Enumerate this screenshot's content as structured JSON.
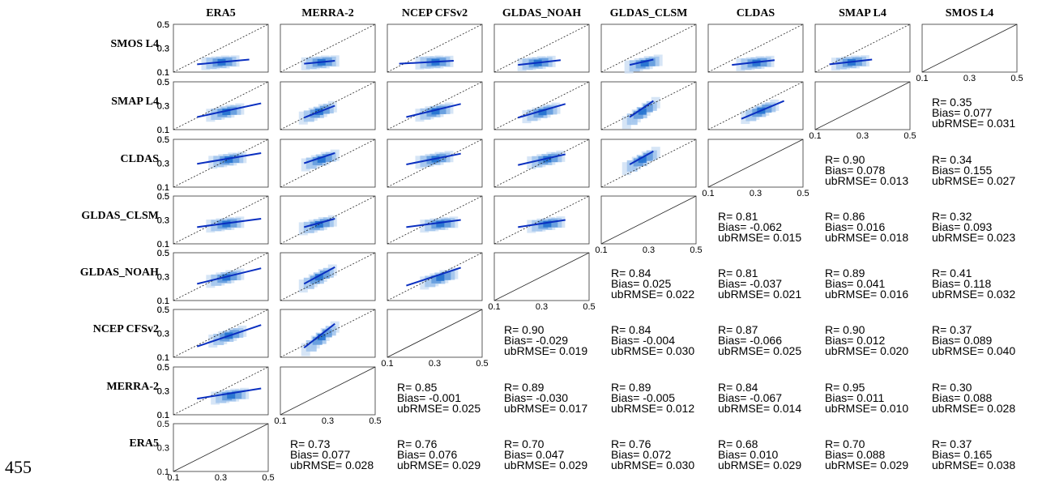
{
  "page_number": "455",
  "chart_data": {
    "type": "scatter",
    "products": [
      "ERA5",
      "MERRA-2",
      "NCEP CFSv2",
      "GLDAS_NOAH",
      "GLDAS_CLSM",
      "CLDAS",
      "SMAP L4",
      "SMOS L4"
    ],
    "row_products": [
      "SMOS L4",
      "SMAP L4",
      "CLDAS",
      "GLDAS_CLSM",
      "GLDAS_NOAH",
      "NCEP CFSv2",
      "MERRA-2",
      "ERA5"
    ],
    "axis_range": [
      0.1,
      0.5
    ],
    "tick_labels": [
      "0.1",
      "0.3",
      "0.5"
    ],
    "scatter_colors": [
      "#cfe0f5",
      "#9fc3ec",
      "#5f99dc",
      "#1f6fcf"
    ],
    "fit_line_color": "#0a2fc0",
    "one_to_one": "dashed",
    "scatter_panels": [
      {
        "row": "SMOS L4",
        "col": "ERA5",
        "cx": 0.3,
        "cy": 0.185,
        "x": [
          0.2,
          0.42
        ],
        "y": [
          0.165,
          0.205
        ]
      },
      {
        "row": "SMOS L4",
        "col": "MERRA-2",
        "cx": 0.27,
        "cy": 0.185,
        "x": [
          0.2,
          0.33
        ],
        "y": [
          0.17,
          0.195
        ]
      },
      {
        "row": "SMOS L4",
        "col": "NCEP CFSv2",
        "cx": 0.3,
        "cy": 0.185,
        "x": [
          0.15,
          0.38
        ],
        "y": [
          0.17,
          0.195
        ]
      },
      {
        "row": "SMOS L4",
        "col": "GLDAS_NOAH",
        "cx": 0.28,
        "cy": 0.18,
        "x": [
          0.2,
          0.38
        ],
        "y": [
          0.16,
          0.2
        ]
      },
      {
        "row": "SMOS L4",
        "col": "GLDAS_CLSM",
        "cx": 0.28,
        "cy": 0.18,
        "x": [
          0.22,
          0.32
        ],
        "y": [
          0.16,
          0.205
        ]
      },
      {
        "row": "SMOS L4",
        "col": "CLDAS",
        "cx": 0.3,
        "cy": 0.18,
        "x": [
          0.2,
          0.38
        ],
        "y": [
          0.16,
          0.2
        ]
      },
      {
        "row": "SMOS L4",
        "col": "SMAP L4",
        "cx": 0.25,
        "cy": 0.185,
        "x": [
          0.16,
          0.34
        ],
        "y": [
          0.165,
          0.205
        ]
      },
      {
        "row": "SMAP L4",
        "col": "ERA5",
        "cx": 0.32,
        "cy": 0.255,
        "x": [
          0.2,
          0.47
        ],
        "y": [
          0.205,
          0.32
        ]
      },
      {
        "row": "SMAP L4",
        "col": "MERRA-2",
        "cx": 0.26,
        "cy": 0.26,
        "x": [
          0.2,
          0.33
        ],
        "y": [
          0.2,
          0.3
        ]
      },
      {
        "row": "SMAP L4",
        "col": "NCEP CFSv2",
        "cx": 0.3,
        "cy": 0.26,
        "x": [
          0.18,
          0.41
        ],
        "y": [
          0.205,
          0.315
        ]
      },
      {
        "row": "SMAP L4",
        "col": "GLDAS_NOAH",
        "cx": 0.3,
        "cy": 0.255,
        "x": [
          0.2,
          0.4
        ],
        "y": [
          0.2,
          0.315
        ]
      },
      {
        "row": "SMAP L4",
        "col": "GLDAS_CLSM",
        "cx": 0.27,
        "cy": 0.27,
        "x": [
          0.22,
          0.32
        ],
        "y": [
          0.205,
          0.34
        ]
      },
      {
        "row": "SMAP L4",
        "col": "CLDAS",
        "cx": 0.32,
        "cy": 0.27,
        "x": [
          0.24,
          0.42
        ],
        "y": [
          0.19,
          0.34
        ]
      },
      {
        "row": "CLDAS",
        "col": "ERA5",
        "cx": 0.33,
        "cy": 0.335,
        "x": [
          0.2,
          0.47
        ],
        "y": [
          0.295,
          0.385
        ]
      },
      {
        "row": "CLDAS",
        "col": "MERRA-2",
        "cx": 0.27,
        "cy": 0.34,
        "x": [
          0.2,
          0.33
        ],
        "y": [
          0.3,
          0.385
        ]
      },
      {
        "row": "CLDAS",
        "col": "NCEP CFSv2",
        "cx": 0.3,
        "cy": 0.34,
        "x": [
          0.18,
          0.41
        ],
        "y": [
          0.29,
          0.38
        ]
      },
      {
        "row": "CLDAS",
        "col": "GLDAS_NOAH",
        "cx": 0.32,
        "cy": 0.34,
        "x": [
          0.2,
          0.4
        ],
        "y": [
          0.285,
          0.375
        ]
      },
      {
        "row": "CLDAS",
        "col": "GLDAS_CLSM",
        "cx": 0.27,
        "cy": 0.345,
        "x": [
          0.22,
          0.32
        ],
        "y": [
          0.29,
          0.4
        ]
      },
      {
        "row": "GLDAS_CLSM",
        "col": "ERA5",
        "cx": 0.32,
        "cy": 0.27,
        "x": [
          0.2,
          0.47
        ],
        "y": [
          0.24,
          0.31
        ]
      },
      {
        "row": "GLDAS_CLSM",
        "col": "MERRA-2",
        "cx": 0.26,
        "cy": 0.27,
        "x": [
          0.2,
          0.33
        ],
        "y": [
          0.24,
          0.31
        ]
      },
      {
        "row": "GLDAS_CLSM",
        "col": "NCEP CFSv2",
        "cx": 0.32,
        "cy": 0.27,
        "x": [
          0.18,
          0.41
        ],
        "y": [
          0.24,
          0.3
        ]
      },
      {
        "row": "GLDAS_CLSM",
        "col": "GLDAS_NOAH",
        "cx": 0.32,
        "cy": 0.27,
        "x": [
          0.2,
          0.4
        ],
        "y": [
          0.24,
          0.3
        ]
      },
      {
        "row": "GLDAS_NOAH",
        "col": "ERA5",
        "cx": 0.32,
        "cy": 0.3,
        "x": [
          0.2,
          0.47
        ],
        "y": [
          0.24,
          0.37
        ]
      },
      {
        "row": "GLDAS_NOAH",
        "col": "MERRA-2",
        "cx": 0.26,
        "cy": 0.31,
        "x": [
          0.2,
          0.33
        ],
        "y": [
          0.24,
          0.38
        ]
      },
      {
        "row": "GLDAS_NOAH",
        "col": "NCEP CFSv2",
        "cx": 0.32,
        "cy": 0.3,
        "x": [
          0.18,
          0.41
        ],
        "y": [
          0.225,
          0.375
        ]
      },
      {
        "row": "NCEP CFSv2",
        "col": "ERA5",
        "cx": 0.33,
        "cy": 0.29,
        "x": [
          0.2,
          0.47
        ],
        "y": [
          0.19,
          0.37
        ]
      },
      {
        "row": "NCEP CFSv2",
        "col": "MERRA-2",
        "cx": 0.27,
        "cy": 0.29,
        "x": [
          0.2,
          0.33
        ],
        "y": [
          0.18,
          0.38
        ]
      },
      {
        "row": "MERRA-2",
        "col": "ERA5",
        "cx": 0.34,
        "cy": 0.265,
        "x": [
          0.2,
          0.47
        ],
        "y": [
          0.235,
          0.32
        ]
      }
    ],
    "statistics": [
      {
        "row": "SMAP L4",
        "col": "SMOS L4",
        "R": "0.35",
        "Bias": "0.077",
        "ubRMSE": "0.031"
      },
      {
        "row": "CLDAS",
        "col": "SMAP L4",
        "R": "0.90",
        "Bias": "0.078",
        "ubRMSE": "0.013"
      },
      {
        "row": "CLDAS",
        "col": "SMOS L4",
        "R": "0.34",
        "Bias": "0.155",
        "ubRMSE": "0.027"
      },
      {
        "row": "GLDAS_CLSM",
        "col": "CLDAS",
        "R": "0.81",
        "Bias": "-0.062",
        "ubRMSE": "0.015"
      },
      {
        "row": "GLDAS_CLSM",
        "col": "SMAP L4",
        "R": "0.86",
        "Bias": "0.016",
        "ubRMSE": "0.018"
      },
      {
        "row": "GLDAS_CLSM",
        "col": "SMOS L4",
        "R": "0.32",
        "Bias": "0.093",
        "ubRMSE": "0.023"
      },
      {
        "row": "GLDAS_NOAH",
        "col": "GLDAS_CLSM",
        "R": "0.84",
        "Bias": "0.025",
        "ubRMSE": "0.022"
      },
      {
        "row": "GLDAS_NOAH",
        "col": "CLDAS",
        "R": "0.81",
        "Bias": "-0.037",
        "ubRMSE": "0.021"
      },
      {
        "row": "GLDAS_NOAH",
        "col": "SMAP L4",
        "R": "0.89",
        "Bias": "0.041",
        "ubRMSE": "0.016"
      },
      {
        "row": "GLDAS_NOAH",
        "col": "SMOS L4",
        "R": "0.41",
        "Bias": "0.118",
        "ubRMSE": "0.032"
      },
      {
        "row": "NCEP CFSv2",
        "col": "GLDAS_NOAH",
        "R": "0.90",
        "Bias": "-0.029",
        "ubRMSE": "0.019"
      },
      {
        "row": "NCEP CFSv2",
        "col": "GLDAS_CLSM",
        "R": "0.84",
        "Bias": "-0.004",
        "ubRMSE": "0.030"
      },
      {
        "row": "NCEP CFSv2",
        "col": "CLDAS",
        "R": "0.87",
        "Bias": "-0.066",
        "ubRMSE": "0.025"
      },
      {
        "row": "NCEP CFSv2",
        "col": "SMAP L4",
        "R": "0.90",
        "Bias": "0.012",
        "ubRMSE": "0.020"
      },
      {
        "row": "NCEP CFSv2",
        "col": "SMOS L4",
        "R": "0.37",
        "Bias": "0.089",
        "ubRMSE": "0.040"
      },
      {
        "row": "MERRA-2",
        "col": "NCEP CFSv2",
        "R": "0.85",
        "Bias": "-0.001",
        "ubRMSE": "0.025"
      },
      {
        "row": "MERRA-2",
        "col": "GLDAS_NOAH",
        "R": "0.89",
        "Bias": "-0.030",
        "ubRMSE": "0.017"
      },
      {
        "row": "MERRA-2",
        "col": "GLDAS_CLSM",
        "R": "0.89",
        "Bias": "-0.005",
        "ubRMSE": "0.012"
      },
      {
        "row": "MERRA-2",
        "col": "CLDAS",
        "R": "0.84",
        "Bias": "-0.067",
        "ubRMSE": "0.014"
      },
      {
        "row": "MERRA-2",
        "col": "SMAP L4",
        "R": "0.95",
        "Bias": "0.011",
        "ubRMSE": "0.010"
      },
      {
        "row": "MERRA-2",
        "col": "SMOS L4",
        "R": "0.30",
        "Bias": "0.088",
        "ubRMSE": "0.028"
      },
      {
        "row": "ERA5",
        "col": "MERRA-2",
        "R": "0.73",
        "Bias": "0.077",
        "ubRMSE": "0.028"
      },
      {
        "row": "ERA5",
        "col": "NCEP CFSv2",
        "R": "0.76",
        "Bias": "0.076",
        "ubRMSE": "0.029"
      },
      {
        "row": "ERA5",
        "col": "GLDAS_NOAH",
        "R": "0.70",
        "Bias": "0.047",
        "ubRMSE": "0.029"
      },
      {
        "row": "ERA5",
        "col": "GLDAS_CLSM",
        "R": "0.76",
        "Bias": "0.072",
        "ubRMSE": "0.030"
      },
      {
        "row": "ERA5",
        "col": "CLDAS",
        "R": "0.68",
        "Bias": "0.010",
        "ubRMSE": "0.029"
      },
      {
        "row": "ERA5",
        "col": "SMAP L4",
        "R": "0.70",
        "Bias": "0.088",
        "ubRMSE": "0.029"
      },
      {
        "row": "ERA5",
        "col": "SMOS L4",
        "R": "0.37",
        "Bias": "0.165",
        "ubRMSE": "0.038"
      }
    ]
  }
}
